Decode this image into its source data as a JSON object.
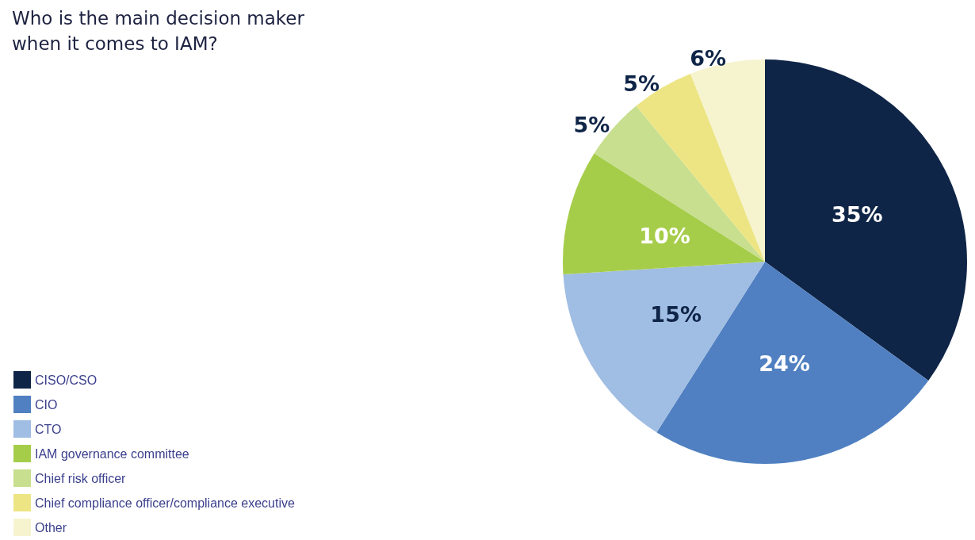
{
  "chart_data": {
    "type": "pie",
    "title": "Who is the main decision maker\nwhen it comes to IAM?",
    "categories": [
      "CISO/CSO",
      "CIO",
      "CTO",
      "IAM governance committee",
      "Chief risk officer",
      "Chief compliance officer/compliance executive",
      "Other"
    ],
    "values": [
      35,
      24,
      15,
      10,
      5,
      5,
      6
    ],
    "colors": [
      "#0f2547",
      "#5080c1",
      "#a0bde3",
      "#a6cd4a",
      "#c7df8e",
      "#ede584",
      "#f6f3cf"
    ],
    "value_labels": [
      "35%",
      "24%",
      "15%",
      "10%",
      "5%",
      "5%",
      "6%"
    ],
    "legend": "bottom left"
  }
}
